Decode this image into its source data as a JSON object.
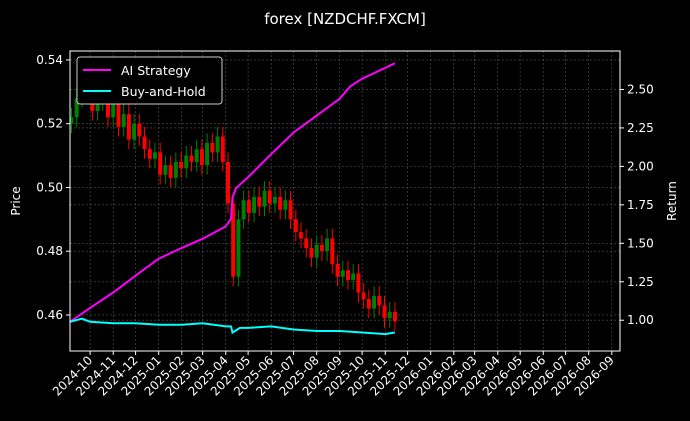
{
  "chart_data": {
    "type": "candlestick+line",
    "title": "forex [NZDCHF.FXCM]",
    "ylabel_left": "Price",
    "ylabel_right": "Return",
    "xlim": [
      "2024-09-04",
      "2026-09-12"
    ],
    "ylim_left": [
      0.4487,
      0.5428
    ],
    "ylim_right": [
      0.8,
      2.75
    ],
    "grid": true,
    "legend_position": "top-left",
    "colors": {
      "up": "#008000",
      "down": "#ff0000",
      "ai": "#ff00ff",
      "bh": "#00ffff",
      "background": "#000000",
      "text": "#ffffff"
    },
    "x_ticks": [
      "2024-10",
      "2024-11",
      "2024-12",
      "2025-01",
      "2025-02",
      "2025-03",
      "2025-04",
      "2025-05",
      "2025-06",
      "2025-07",
      "2025-08",
      "2025-09",
      "2025-10",
      "2025-11",
      "2025-12",
      "2026-01",
      "2026-02",
      "2026-03",
      "2026-04",
      "2026-05",
      "2026-06",
      "2026-07",
      "2026-08",
      "2026-09"
    ],
    "y_ticks_left": [
      "0.46",
      "0.48",
      "0.50",
      "0.52",
      "0.54"
    ],
    "y_ticks_right": [
      "1.00",
      "1.25",
      "1.50",
      "1.75",
      "2.00",
      "2.25",
      "2.50"
    ],
    "price_weekly_close": [
      [
        "2024-09-06",
        0.522
      ],
      [
        "2024-09-13",
        0.528
      ],
      [
        "2024-09-20",
        0.536
      ],
      [
        "2024-09-27",
        0.531
      ],
      [
        "2024-10-04",
        0.524
      ],
      [
        "2024-10-11",
        0.527
      ],
      [
        "2024-10-18",
        0.53
      ],
      [
        "2024-10-25",
        0.522
      ],
      [
        "2024-11-01",
        0.526
      ],
      [
        "2024-11-08",
        0.519
      ],
      [
        "2024-11-15",
        0.523
      ],
      [
        "2024-11-22",
        0.515
      ],
      [
        "2024-11-29",
        0.52
      ],
      [
        "2024-12-06",
        0.516
      ],
      [
        "2024-12-13",
        0.512
      ],
      [
        "2024-12-20",
        0.509
      ],
      [
        "2024-12-27",
        0.511
      ],
      [
        "2025-01-03",
        0.504
      ],
      [
        "2025-01-10",
        0.507
      ],
      [
        "2025-01-17",
        0.503
      ],
      [
        "2025-01-24",
        0.508
      ],
      [
        "2025-01-31",
        0.506
      ],
      [
        "2025-02-07",
        0.51
      ],
      [
        "2025-02-14",
        0.508
      ],
      [
        "2025-02-21",
        0.512
      ],
      [
        "2025-02-28",
        0.507
      ],
      [
        "2025-03-07",
        0.514
      ],
      [
        "2025-03-14",
        0.511
      ],
      [
        "2025-03-21",
        0.516
      ],
      [
        "2025-03-28",
        0.508
      ],
      [
        "2025-04-04",
        0.495
      ],
      [
        "2025-04-11",
        0.472
      ],
      [
        "2025-04-18",
        0.49
      ],
      [
        "2025-04-25",
        0.496
      ],
      [
        "2025-05-02",
        0.492
      ],
      [
        "2025-05-09",
        0.497
      ],
      [
        "2025-05-16",
        0.494
      ],
      [
        "2025-05-23",
        0.499
      ],
      [
        "2025-05-30",
        0.495
      ],
      [
        "2025-06-06",
        0.497
      ],
      [
        "2025-06-13",
        0.493
      ],
      [
        "2025-06-20",
        0.496
      ],
      [
        "2025-06-27",
        0.49
      ],
      [
        "2025-07-04",
        0.486
      ],
      [
        "2025-07-11",
        0.484
      ],
      [
        "2025-07-18",
        0.481
      ],
      [
        "2025-07-25",
        0.478
      ],
      [
        "2025-08-01",
        0.482
      ],
      [
        "2025-08-08",
        0.48
      ],
      [
        "2025-08-15",
        0.484
      ],
      [
        "2025-08-22",
        0.476
      ],
      [
        "2025-08-29",
        0.472
      ],
      [
        "2025-09-05",
        0.474
      ],
      [
        "2025-09-12",
        0.471
      ],
      [
        "2025-09-19",
        0.473
      ],
      [
        "2025-09-26",
        0.467
      ],
      [
        "2025-10-03",
        0.465
      ],
      [
        "2025-10-10",
        0.462
      ],
      [
        "2025-10-17",
        0.466
      ],
      [
        "2025-10-24",
        0.463
      ],
      [
        "2025-10-31",
        0.459
      ],
      [
        "2025-11-07",
        0.461
      ],
      [
        "2025-11-14",
        0.458
      ]
    ],
    "series": [
      {
        "name": "AI Strategy",
        "axis": "right",
        "points": [
          [
            "2024-09-04",
            0.99
          ],
          [
            "2024-10-01",
            1.08
          ],
          [
            "2024-11-01",
            1.18
          ],
          [
            "2024-12-01",
            1.29
          ],
          [
            "2025-01-01",
            1.4
          ],
          [
            "2025-02-01",
            1.47
          ],
          [
            "2025-03-01",
            1.53
          ],
          [
            "2025-04-01",
            1.61
          ],
          [
            "2025-04-08",
            1.66
          ],
          [
            "2025-04-10",
            1.8
          ],
          [
            "2025-04-15",
            1.86
          ],
          [
            "2025-05-01",
            1.93
          ],
          [
            "2025-06-01",
            2.08
          ],
          [
            "2025-07-01",
            2.22
          ],
          [
            "2025-08-01",
            2.33
          ],
          [
            "2025-09-01",
            2.44
          ],
          [
            "2025-09-15",
            2.52
          ],
          [
            "2025-10-01",
            2.57
          ],
          [
            "2025-11-01",
            2.64
          ],
          [
            "2025-11-14",
            2.67
          ]
        ]
      },
      {
        "name": "Buy-and-Hold",
        "axis": "right",
        "points": [
          [
            "2024-09-04",
            0.99
          ],
          [
            "2024-09-20",
            1.01
          ],
          [
            "2024-10-01",
            0.99
          ],
          [
            "2024-11-01",
            0.98
          ],
          [
            "2024-12-01",
            0.98
          ],
          [
            "2025-01-01",
            0.97
          ],
          [
            "2025-02-01",
            0.97
          ],
          [
            "2025-03-01",
            0.98
          ],
          [
            "2025-04-01",
            0.96
          ],
          [
            "2025-04-08",
            0.96
          ],
          [
            "2025-04-10",
            0.92
          ],
          [
            "2025-04-20",
            0.95
          ],
          [
            "2025-05-01",
            0.95
          ],
          [
            "2025-06-01",
            0.96
          ],
          [
            "2025-07-01",
            0.94
          ],
          [
            "2025-08-01",
            0.93
          ],
          [
            "2025-09-01",
            0.93
          ],
          [
            "2025-10-01",
            0.92
          ],
          [
            "2025-11-01",
            0.91
          ],
          [
            "2025-11-14",
            0.92
          ]
        ]
      }
    ]
  }
}
